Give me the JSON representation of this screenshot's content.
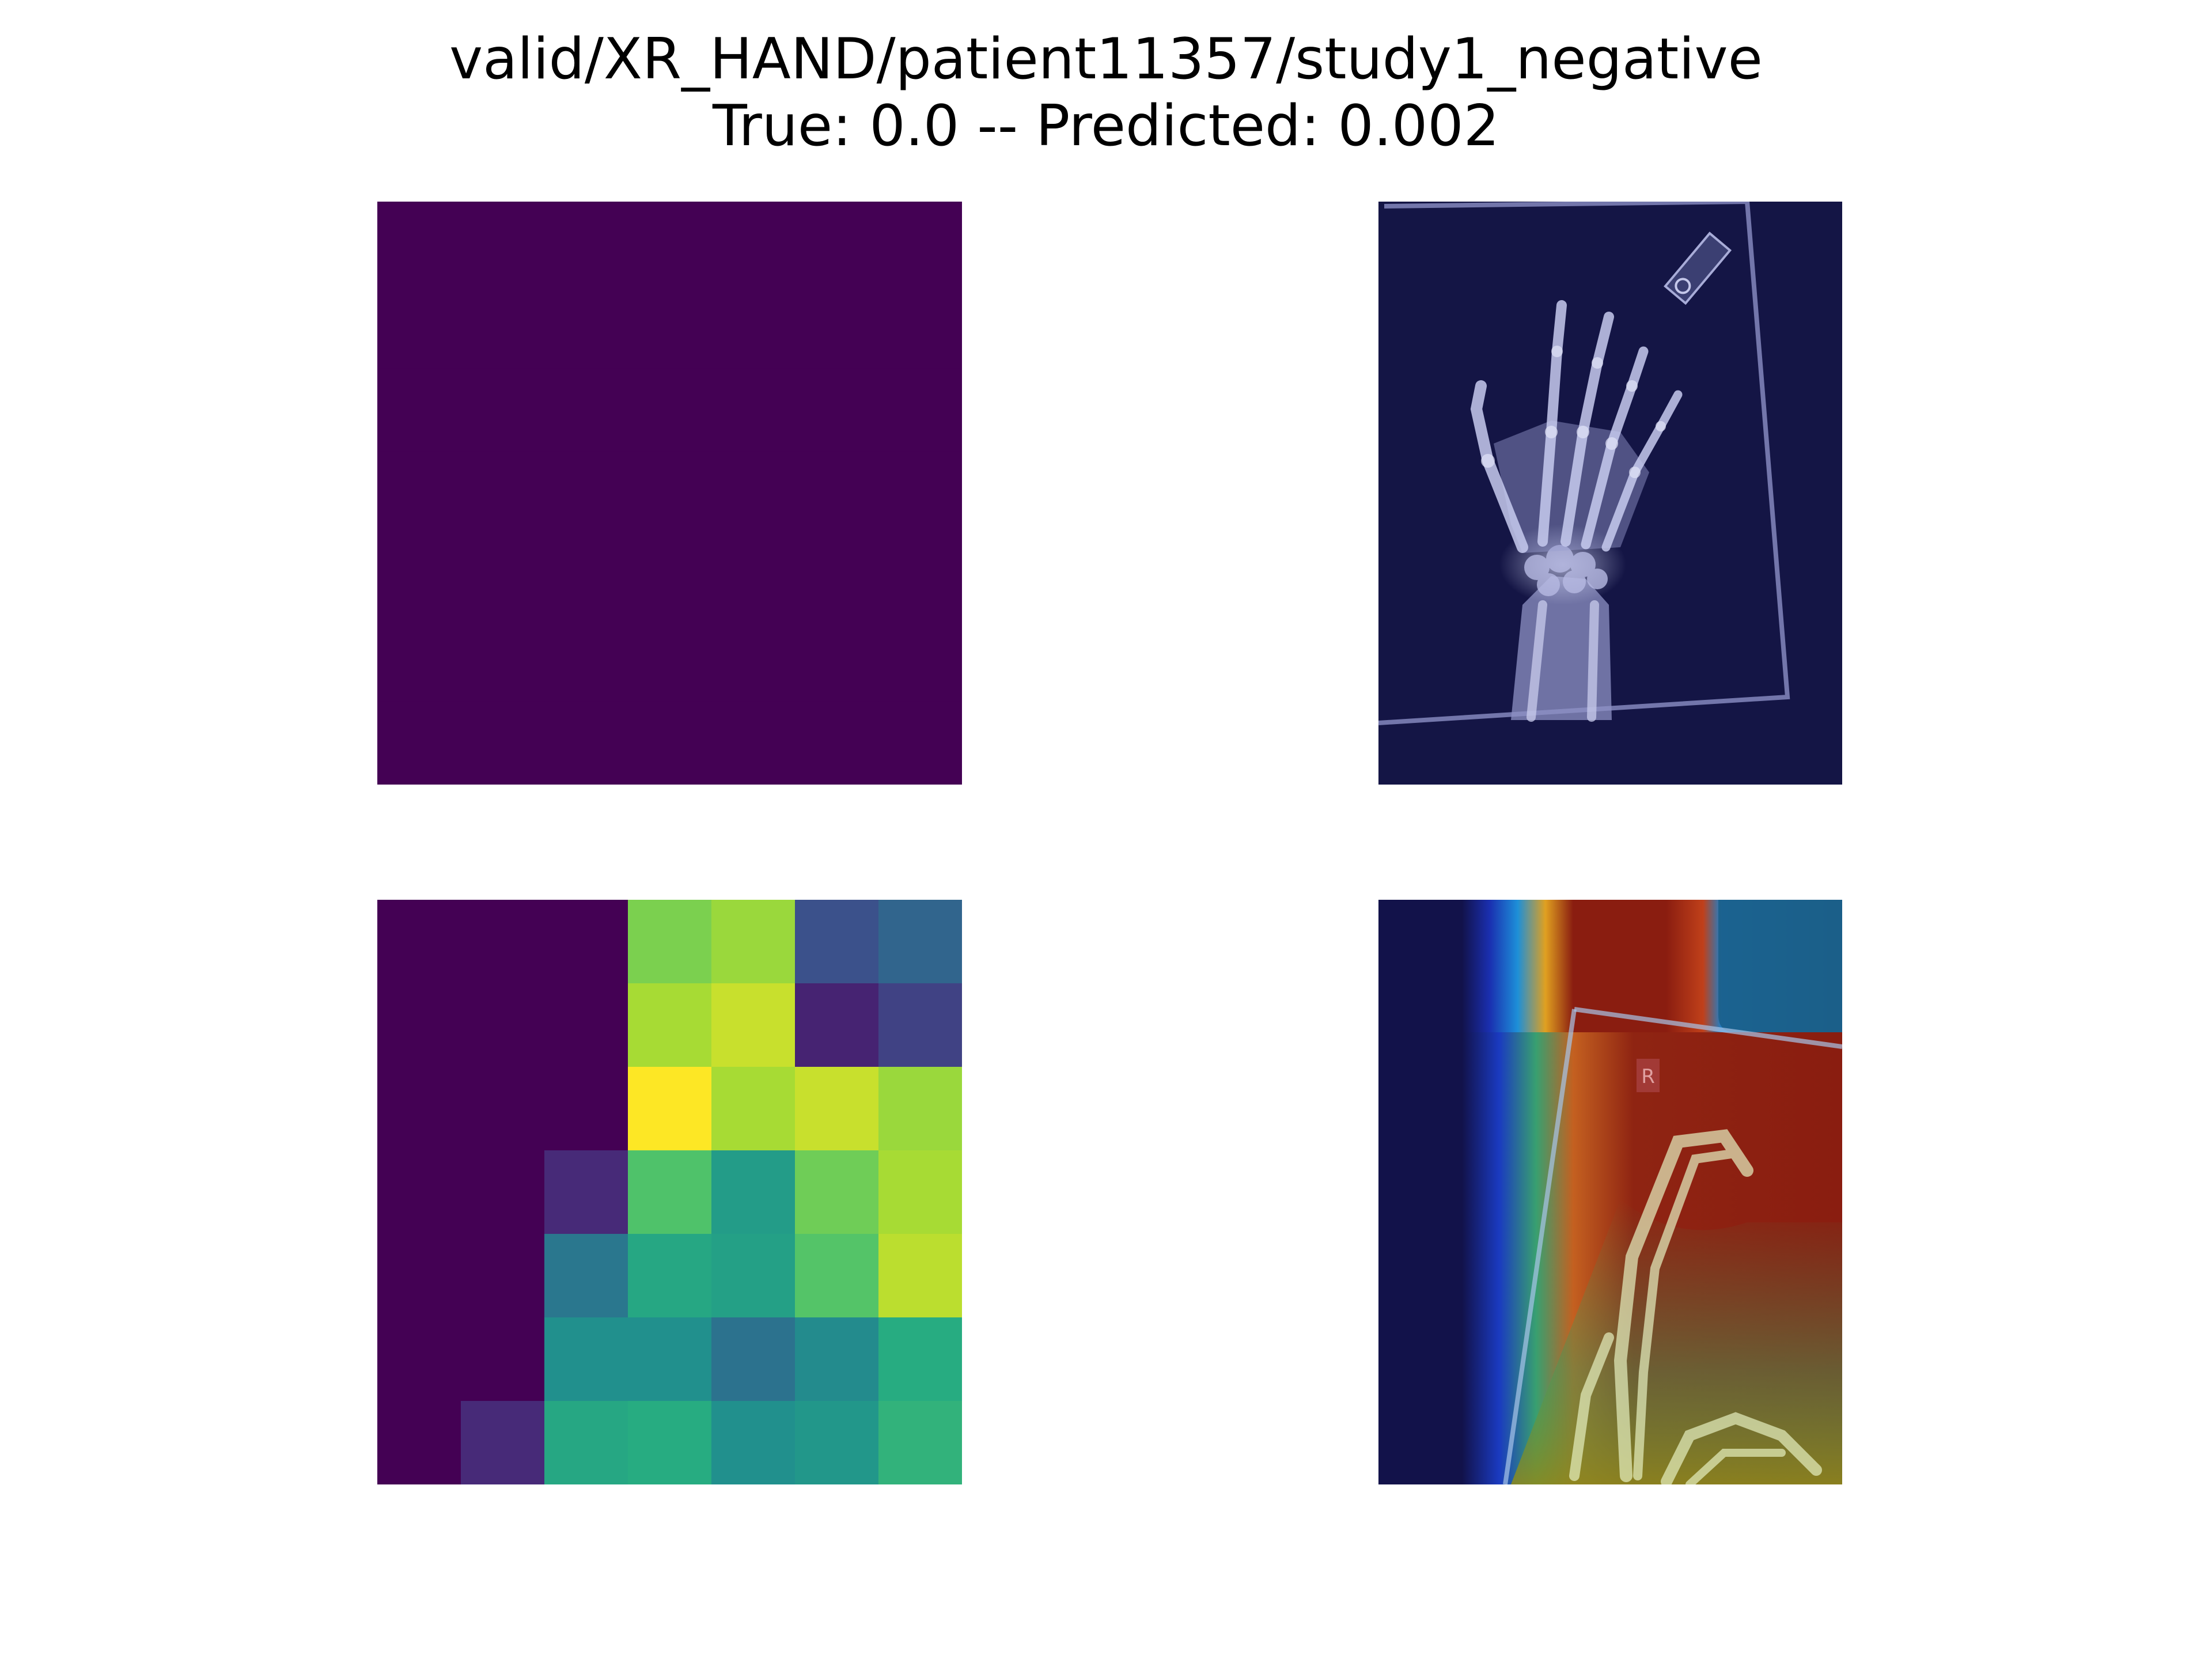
{
  "figure": {
    "title_line_1": "valid/XR_HAND/patient11357/study1_negative",
    "title_line_2": "True: 0.0 -- Predicted: 0.002"
  },
  "colors": {
    "background": "#ffffff",
    "viridis_min": "#440154",
    "xray_background": "#141545",
    "overlay_cold": "#12124a"
  },
  "chart_data": [
    {
      "type": "heatmap",
      "panel": "top-left",
      "grid": [
        7,
        7
      ],
      "colormap": "viridis",
      "values": [
        [
          0,
          0,
          0,
          0,
          0,
          0,
          0
        ],
        [
          0,
          0,
          0,
          0,
          0,
          0,
          0
        ],
        [
          0,
          0,
          0,
          0,
          0,
          0,
          0
        ],
        [
          0,
          0,
          0,
          0,
          0,
          0,
          0
        ],
        [
          0,
          0,
          0,
          0,
          0,
          0,
          0
        ],
        [
          0,
          0,
          0,
          0,
          0,
          0,
          0
        ],
        [
          0,
          0,
          0,
          0,
          0,
          0,
          0
        ]
      ]
    },
    {
      "type": "image",
      "panel": "top-right",
      "content": "hand x-ray"
    },
    {
      "type": "heatmap",
      "panel": "bottom-left",
      "grid": [
        7,
        7
      ],
      "colormap": "viridis",
      "values": [
        [
          0.0,
          0.0,
          0.0,
          0.8,
          0.85,
          0.25,
          0.33
        ],
        [
          0.0,
          0.0,
          0.0,
          0.87,
          0.92,
          0.1,
          0.2
        ],
        [
          0.0,
          0.0,
          0.0,
          1.0,
          0.87,
          0.92,
          0.85
        ],
        [
          0.0,
          0.0,
          0.12,
          0.72,
          0.55,
          0.78,
          0.87
        ],
        [
          0.0,
          0.0,
          0.4,
          0.6,
          0.57,
          0.73,
          0.9
        ],
        [
          0.0,
          0.0,
          0.5,
          0.5,
          0.38,
          0.48,
          0.62
        ],
        [
          0.0,
          0.12,
          0.6,
          0.62,
          0.5,
          0.53,
          0.65
        ]
      ]
    },
    {
      "type": "image",
      "panel": "bottom-right",
      "content": "x-ray with jet heat overlay",
      "marker_text": "R"
    }
  ]
}
